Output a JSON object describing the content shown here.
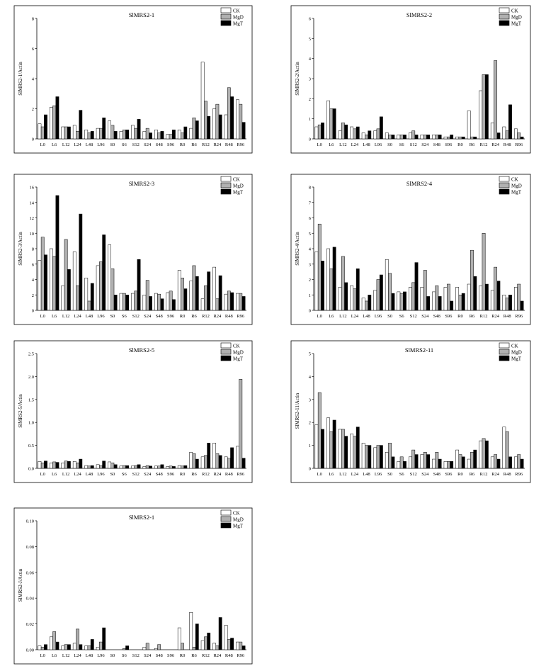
{
  "chart_data": [
    {
      "type": "bar",
      "title": "SlMRS2-1",
      "ylabel": "SlMRS2-1/Actin",
      "xlabel": "",
      "ylim": [
        0,
        8
      ],
      "yticks": [
        "0",
        "2",
        "4",
        "6",
        "8"
      ],
      "categories": [
        "L0",
        "L6",
        "L12",
        "L24",
        "L48",
        "L96",
        "S0",
        "S6",
        "S12",
        "S24",
        "S48",
        "S96",
        "R0",
        "R6",
        "R12",
        "R24",
        "R48",
        "R96"
      ],
      "legend": [
        "CK",
        "MgD",
        "MgT"
      ],
      "legend_position": "top-right",
      "series": [
        {
          "name": "CK",
          "values": [
            1.0,
            2.1,
            0.8,
            0.9,
            0.6,
            0.7,
            1.2,
            0.5,
            0.9,
            0.5,
            0.6,
            0.3,
            0.6,
            0.7,
            5.1,
            2.0,
            1.6,
            2.6
          ]
        },
        {
          "name": "MgD",
          "values": [
            0.8,
            2.2,
            0.8,
            0.5,
            0.4,
            0.7,
            0.9,
            0.6,
            0.7,
            0.7,
            0.4,
            0.3,
            0.4,
            1.4,
            2.5,
            2.3,
            3.4,
            2.3
          ]
        },
        {
          "name": "MgT",
          "values": [
            1.6,
            2.8,
            0.8,
            1.9,
            0.5,
            1.4,
            0.5,
            0.6,
            1.3,
            0.4,
            0.5,
            0.6,
            0.8,
            1.2,
            1.5,
            1.6,
            2.8,
            1.1
          ]
        }
      ]
    },
    {
      "type": "bar",
      "title": "SlMRS2-2",
      "ylabel": "SlMRS2-2/Actin",
      "xlabel": "",
      "ylim": [
        0,
        6
      ],
      "yticks": [
        "0",
        "1",
        "2",
        "3",
        "4",
        "5",
        "6"
      ],
      "categories": [
        "L0",
        "L6",
        "L12",
        "L24",
        "L48",
        "L96",
        "S0",
        "S6",
        "S12",
        "S24",
        "S48",
        "S96",
        "R0",
        "R6",
        "R12",
        "R24",
        "R48",
        "R96"
      ],
      "legend": [
        "CK",
        "MgD",
        "MgT"
      ],
      "legend_position": "top-right",
      "series": [
        {
          "name": "CK",
          "values": [
            0.6,
            1.9,
            0.4,
            0.6,
            0.3,
            0.4,
            0.3,
            0.2,
            0.3,
            0.2,
            0.2,
            0.1,
            0.1,
            1.4,
            2.4,
            0.8,
            0.6,
            0.5
          ]
        },
        {
          "name": "MgD",
          "values": [
            0.7,
            1.5,
            0.8,
            0.5,
            0.2,
            0.5,
            0.2,
            0.2,
            0.4,
            0.2,
            0.2,
            0.1,
            0.1,
            0.1,
            3.2,
            3.9,
            0.4,
            0.3
          ]
        },
        {
          "name": "MgT",
          "values": [
            0.8,
            1.5,
            0.7,
            0.6,
            0.4,
            1.1,
            0.2,
            0.2,
            0.2,
            0.2,
            0.2,
            0.2,
            0.1,
            0.1,
            3.2,
            0.3,
            1.7,
            0.1
          ]
        }
      ]
    },
    {
      "type": "bar",
      "title": "SlMRS2-3",
      "ylabel": "SlMRS2-3/Actin",
      "xlabel": "",
      "ylim": [
        0,
        16
      ],
      "yticks": [
        "0",
        "2",
        "4",
        "6",
        "8",
        "10",
        "12",
        "14",
        "16"
      ],
      "categories": [
        "L0",
        "L6",
        "L12",
        "L24",
        "L48",
        "L96",
        "S0",
        "S6",
        "S12",
        "S24",
        "S48",
        "S96",
        "R0",
        "R6",
        "R12",
        "R24",
        "R48",
        "R96"
      ],
      "legend": [
        "CK",
        "MgD",
        "MgT"
      ],
      "legend_position": "top-right",
      "series": [
        {
          "name": "CK",
          "values": [
            6.5,
            8.0,
            3.2,
            7.6,
            4.2,
            5.8,
            8.5,
            2.2,
            2.2,
            2.0,
            2.2,
            2.3,
            5.2,
            3.8,
            1.5,
            5.6,
            2.1,
            2.2
          ]
        },
        {
          "name": "MgD",
          "values": [
            9.5,
            7.0,
            9.2,
            3.2,
            1.2,
            6.3,
            5.4,
            2.2,
            2.5,
            3.9,
            2.1,
            2.5,
            4.2,
            5.8,
            3.2,
            1.5,
            2.5,
            2.2
          ]
        },
        {
          "name": "MgT",
          "values": [
            7.2,
            14.9,
            5.3,
            12.5,
            3.5,
            9.8,
            2.0,
            2.0,
            6.6,
            1.8,
            1.5,
            1.4,
            2.8,
            4.4,
            5.0,
            4.5,
            2.3,
            1.8
          ]
        }
      ]
    },
    {
      "type": "bar",
      "title": "SlMRS2-4",
      "ylabel": "SlMRS2-4/Actin",
      "xlabel": "",
      "ylim": [
        0,
        8
      ],
      "yticks": [
        "0",
        "1",
        "2",
        "3",
        "4",
        "5",
        "6",
        "7",
        "8"
      ],
      "categories": [
        "L0",
        "L6",
        "L12",
        "L24",
        "L48",
        "L96",
        "S0",
        "S6",
        "S12",
        "S24",
        "S48",
        "S96",
        "R0",
        "R6",
        "R12",
        "R24",
        "R48",
        "R96"
      ],
      "legend": [
        "CK",
        "MgD",
        "MgT"
      ],
      "legend_position": "top-right",
      "series": [
        {
          "name": "CK",
          "values": [
            3.8,
            4.0,
            1.5,
            1.6,
            0.8,
            1.3,
            3.3,
            1.2,
            1.5,
            1.5,
            1.2,
            1.5,
            1.5,
            1.7,
            1.6,
            1.3,
            1.0,
            1.5
          ]
        },
        {
          "name": "MgD",
          "values": [
            5.6,
            2.7,
            3.5,
            1.4,
            0.6,
            2.0,
            2.4,
            1.1,
            1.8,
            2.6,
            1.6,
            1.7,
            1.0,
            3.9,
            5.0,
            2.8,
            0.8,
            1.7
          ]
        },
        {
          "name": "MgT",
          "values": [
            3.2,
            4.1,
            1.8,
            2.7,
            1.0,
            2.3,
            1.1,
            1.2,
            3.1,
            0.9,
            0.9,
            0.6,
            1.1,
            2.2,
            1.7,
            1.9,
            1.0,
            0.6
          ]
        }
      ]
    },
    {
      "type": "bar",
      "title": "SlMRS2-5",
      "ylabel": "SlMRS2-5/Actin",
      "xlabel": "",
      "ylim": [
        0,
        2.5
      ],
      "yticks": [
        "0.0",
        "0.5",
        "1.0",
        "1.5",
        "2.0",
        "2.5"
      ],
      "categories": [
        "L0",
        "L6",
        "L12",
        "L24",
        "L48",
        "L96",
        "S0",
        "S6",
        "S12",
        "S24",
        "S48",
        "S96",
        "R0",
        "R6",
        "R12",
        "R24",
        "R48",
        "R96"
      ],
      "legend": [
        "CK",
        "MgD",
        "MgT"
      ],
      "legend_position": "top-right",
      "series": [
        {
          "name": "CK",
          "values": [
            0.15,
            0.12,
            0.12,
            0.15,
            0.06,
            0.08,
            0.14,
            0.05,
            0.05,
            0.04,
            0.05,
            0.04,
            0.06,
            0.35,
            0.25,
            0.55,
            0.25,
            0.48
          ]
        },
        {
          "name": "MgD",
          "values": [
            0.12,
            0.14,
            0.16,
            0.12,
            0.05,
            0.06,
            0.12,
            0.06,
            0.06,
            0.06,
            0.05,
            0.05,
            0.05,
            0.32,
            0.28,
            0.32,
            0.22,
            1.94
          ]
        },
        {
          "name": "MgT",
          "values": [
            0.16,
            0.13,
            0.15,
            0.2,
            0.06,
            0.16,
            0.08,
            0.06,
            0.08,
            0.05,
            0.08,
            0.04,
            0.06,
            0.2,
            0.55,
            0.28,
            0.45,
            0.22
          ]
        }
      ]
    },
    {
      "type": "bar",
      "title": "SlMRS2-11",
      "ylabel": "SlMRS2-11/Actin",
      "xlabel": "",
      "ylim": [
        0,
        5
      ],
      "yticks": [
        "0",
        "1",
        "2",
        "3",
        "4",
        "5"
      ],
      "categories": [
        "L0",
        "L6",
        "L12",
        "L24",
        "L48",
        "L96",
        "S0",
        "S6",
        "S12",
        "S24",
        "S48",
        "S96",
        "R0",
        "R6",
        "R12",
        "R24",
        "R48",
        "R96"
      ],
      "legend": [
        "CK",
        "MgD",
        "MgT"
      ],
      "legend_position": "top-right",
      "series": [
        {
          "name": "CK",
          "values": [
            1.9,
            2.2,
            1.7,
            1.5,
            1.1,
            0.9,
            0.7,
            0.3,
            0.5,
            0.6,
            0.4,
            0.3,
            0.8,
            0.4,
            1.2,
            0.5,
            1.8,
            0.5
          ]
        },
        {
          "name": "MgD",
          "values": [
            3.3,
            1.6,
            1.7,
            1.4,
            1.0,
            1.0,
            1.1,
            0.5,
            0.8,
            0.7,
            0.7,
            0.3,
            0.6,
            0.7,
            1.3,
            0.6,
            1.6,
            0.6
          ]
        },
        {
          "name": "MgT",
          "values": [
            1.7,
            2.1,
            1.4,
            1.8,
            1.0,
            1.0,
            0.5,
            0.3,
            0.6,
            0.6,
            0.4,
            0.3,
            0.5,
            0.8,
            1.2,
            0.4,
            0.5,
            0.4
          ]
        }
      ]
    },
    {
      "type": "bar",
      "title": "SlMRS2-1",
      "ylabel": "SlMRS2-J/Actin",
      "xlabel": "",
      "ylim": [
        0,
        0.1
      ],
      "yticks": [
        "0.00",
        "0.02",
        "0.04",
        "0.06",
        "0.08",
        "0.10"
      ],
      "categories": [
        "L0",
        "L6",
        "L12",
        "L24",
        "L48",
        "L96",
        "S0",
        "S6",
        "S12",
        "S24",
        "S48",
        "S96",
        "R0",
        "R6",
        "R12",
        "R24",
        "R48",
        "R96"
      ],
      "legend": [
        "CK",
        "MgD",
        "MgT"
      ],
      "legend_position": "top-right",
      "series": [
        {
          "name": "CK",
          "values": [
            0.003,
            0.01,
            0.003,
            0.005,
            0.003,
            0.002,
            0.0,
            0.0,
            0.0,
            0.002,
            0.001,
            0.0,
            0.017,
            0.029,
            0.007,
            0.005,
            0.019,
            0.006
          ]
        },
        {
          "name": "MgD",
          "values": [
            0.002,
            0.014,
            0.004,
            0.016,
            0.003,
            0.006,
            0.0,
            0.001,
            0.0,
            0.005,
            0.004,
            0.0,
            0.005,
            0.002,
            0.01,
            0.003,
            0.008,
            0.006
          ]
        },
        {
          "name": "MgT",
          "values": [
            0.004,
            0.006,
            0.004,
            0.004,
            0.008,
            0.017,
            0.0,
            0.003,
            0.0,
            0.0,
            0.0,
            0.0,
            0.0,
            0.02,
            0.013,
            0.025,
            0.009,
            0.003
          ]
        }
      ]
    }
  ]
}
